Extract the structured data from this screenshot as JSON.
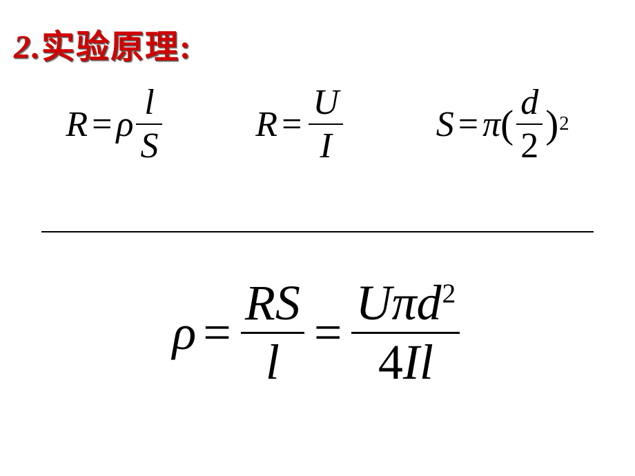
{
  "heading": {
    "number": "2.",
    "text": "实验原理:",
    "color": "#d00000",
    "fontsize": 48
  },
  "equations_row1": {
    "eq1": {
      "lhs": "R",
      "rhs_var": "ρ",
      "frac_num": "l",
      "frac_den": "S"
    },
    "eq2": {
      "lhs": "R",
      "frac_num": "U",
      "frac_den": "I"
    },
    "eq3": {
      "lhs": "S",
      "pi": "π",
      "frac_num": "d",
      "frac_den": "2",
      "exp": "2"
    }
  },
  "equation_row2": {
    "lhs": "ρ",
    "frac1_num": "RS",
    "frac1_den": "l",
    "frac2_num_U": "U",
    "frac2_num_pi": "π",
    "frac2_num_d": "d",
    "frac2_num_exp": "2",
    "frac2_den_4": "4",
    "frac2_den_I": "I",
    "frac2_den_l": "l"
  },
  "style": {
    "background": "#ffffff",
    "text_color": "#000000",
    "font_family": "Times New Roman",
    "eq_fontsize_row1": 52,
    "eq_fontsize_row2": 72,
    "hr_width": 800
  }
}
